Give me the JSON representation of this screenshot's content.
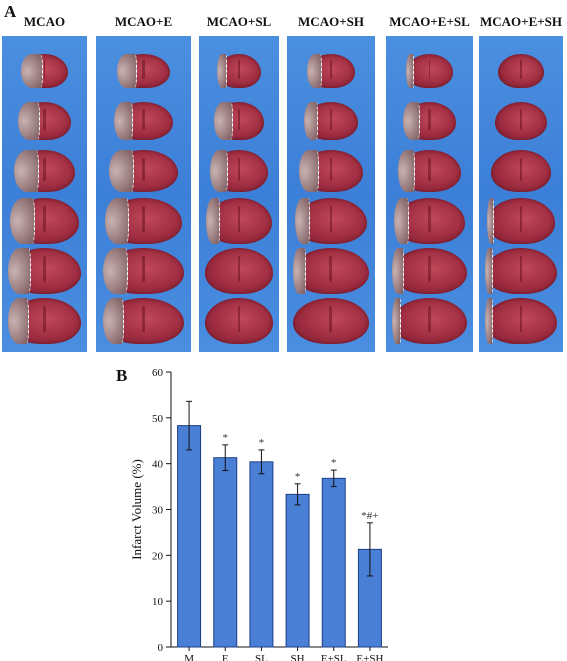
{
  "panel_a": {
    "letter": "A",
    "columns": [
      {
        "label": "MCAO",
        "lesions": [
          0.45,
          0.4,
          0.4,
          0.35,
          0.3,
          0.28
        ]
      },
      {
        "label": "MCAO+E",
        "lesions": [
          0.35,
          0.3,
          0.35,
          0.3,
          0.3,
          0.25
        ]
      },
      {
        "label": "MCAO+SL",
        "lesions": [
          0.2,
          0.35,
          0.3,
          0.2,
          0.0,
          0.0
        ]
      },
      {
        "label": "MCAO+SH",
        "lesions": [
          0.3,
          0.25,
          0.3,
          0.2,
          0.15,
          0.0
        ]
      },
      {
        "label": "MCAO+E+SL",
        "lesions": [
          0.15,
          0.3,
          0.25,
          0.2,
          0.15,
          0.1
        ]
      },
      {
        "label": "MCAO+E+SH",
        "lesions": [
          0.0,
          0.0,
          0.0,
          0.1,
          0.1,
          0.1
        ]
      }
    ]
  },
  "panel_b": {
    "letter": "B"
  },
  "chart_data": {
    "type": "bar",
    "categories": [
      "M",
      "E",
      "SL",
      "SH",
      "E+SL",
      "E+SH"
    ],
    "values": [
      48.3,
      41.3,
      40.4,
      33.3,
      36.8,
      21.3
    ],
    "errors": [
      5.3,
      2.8,
      2.6,
      2.3,
      1.8,
      5.8
    ],
    "annotations": [
      "",
      "*",
      "*",
      "*",
      "*",
      "*#+"
    ],
    "title": "",
    "xlabel": "",
    "ylabel": "Infarct Volume (%)",
    "ylim": [
      0,
      60
    ],
    "yticks": [
      0,
      10,
      20,
      30,
      40,
      50,
      60
    ],
    "bar_color": "#4a7fd6",
    "bar_edge": "#1d3f86",
    "grid": false
  }
}
